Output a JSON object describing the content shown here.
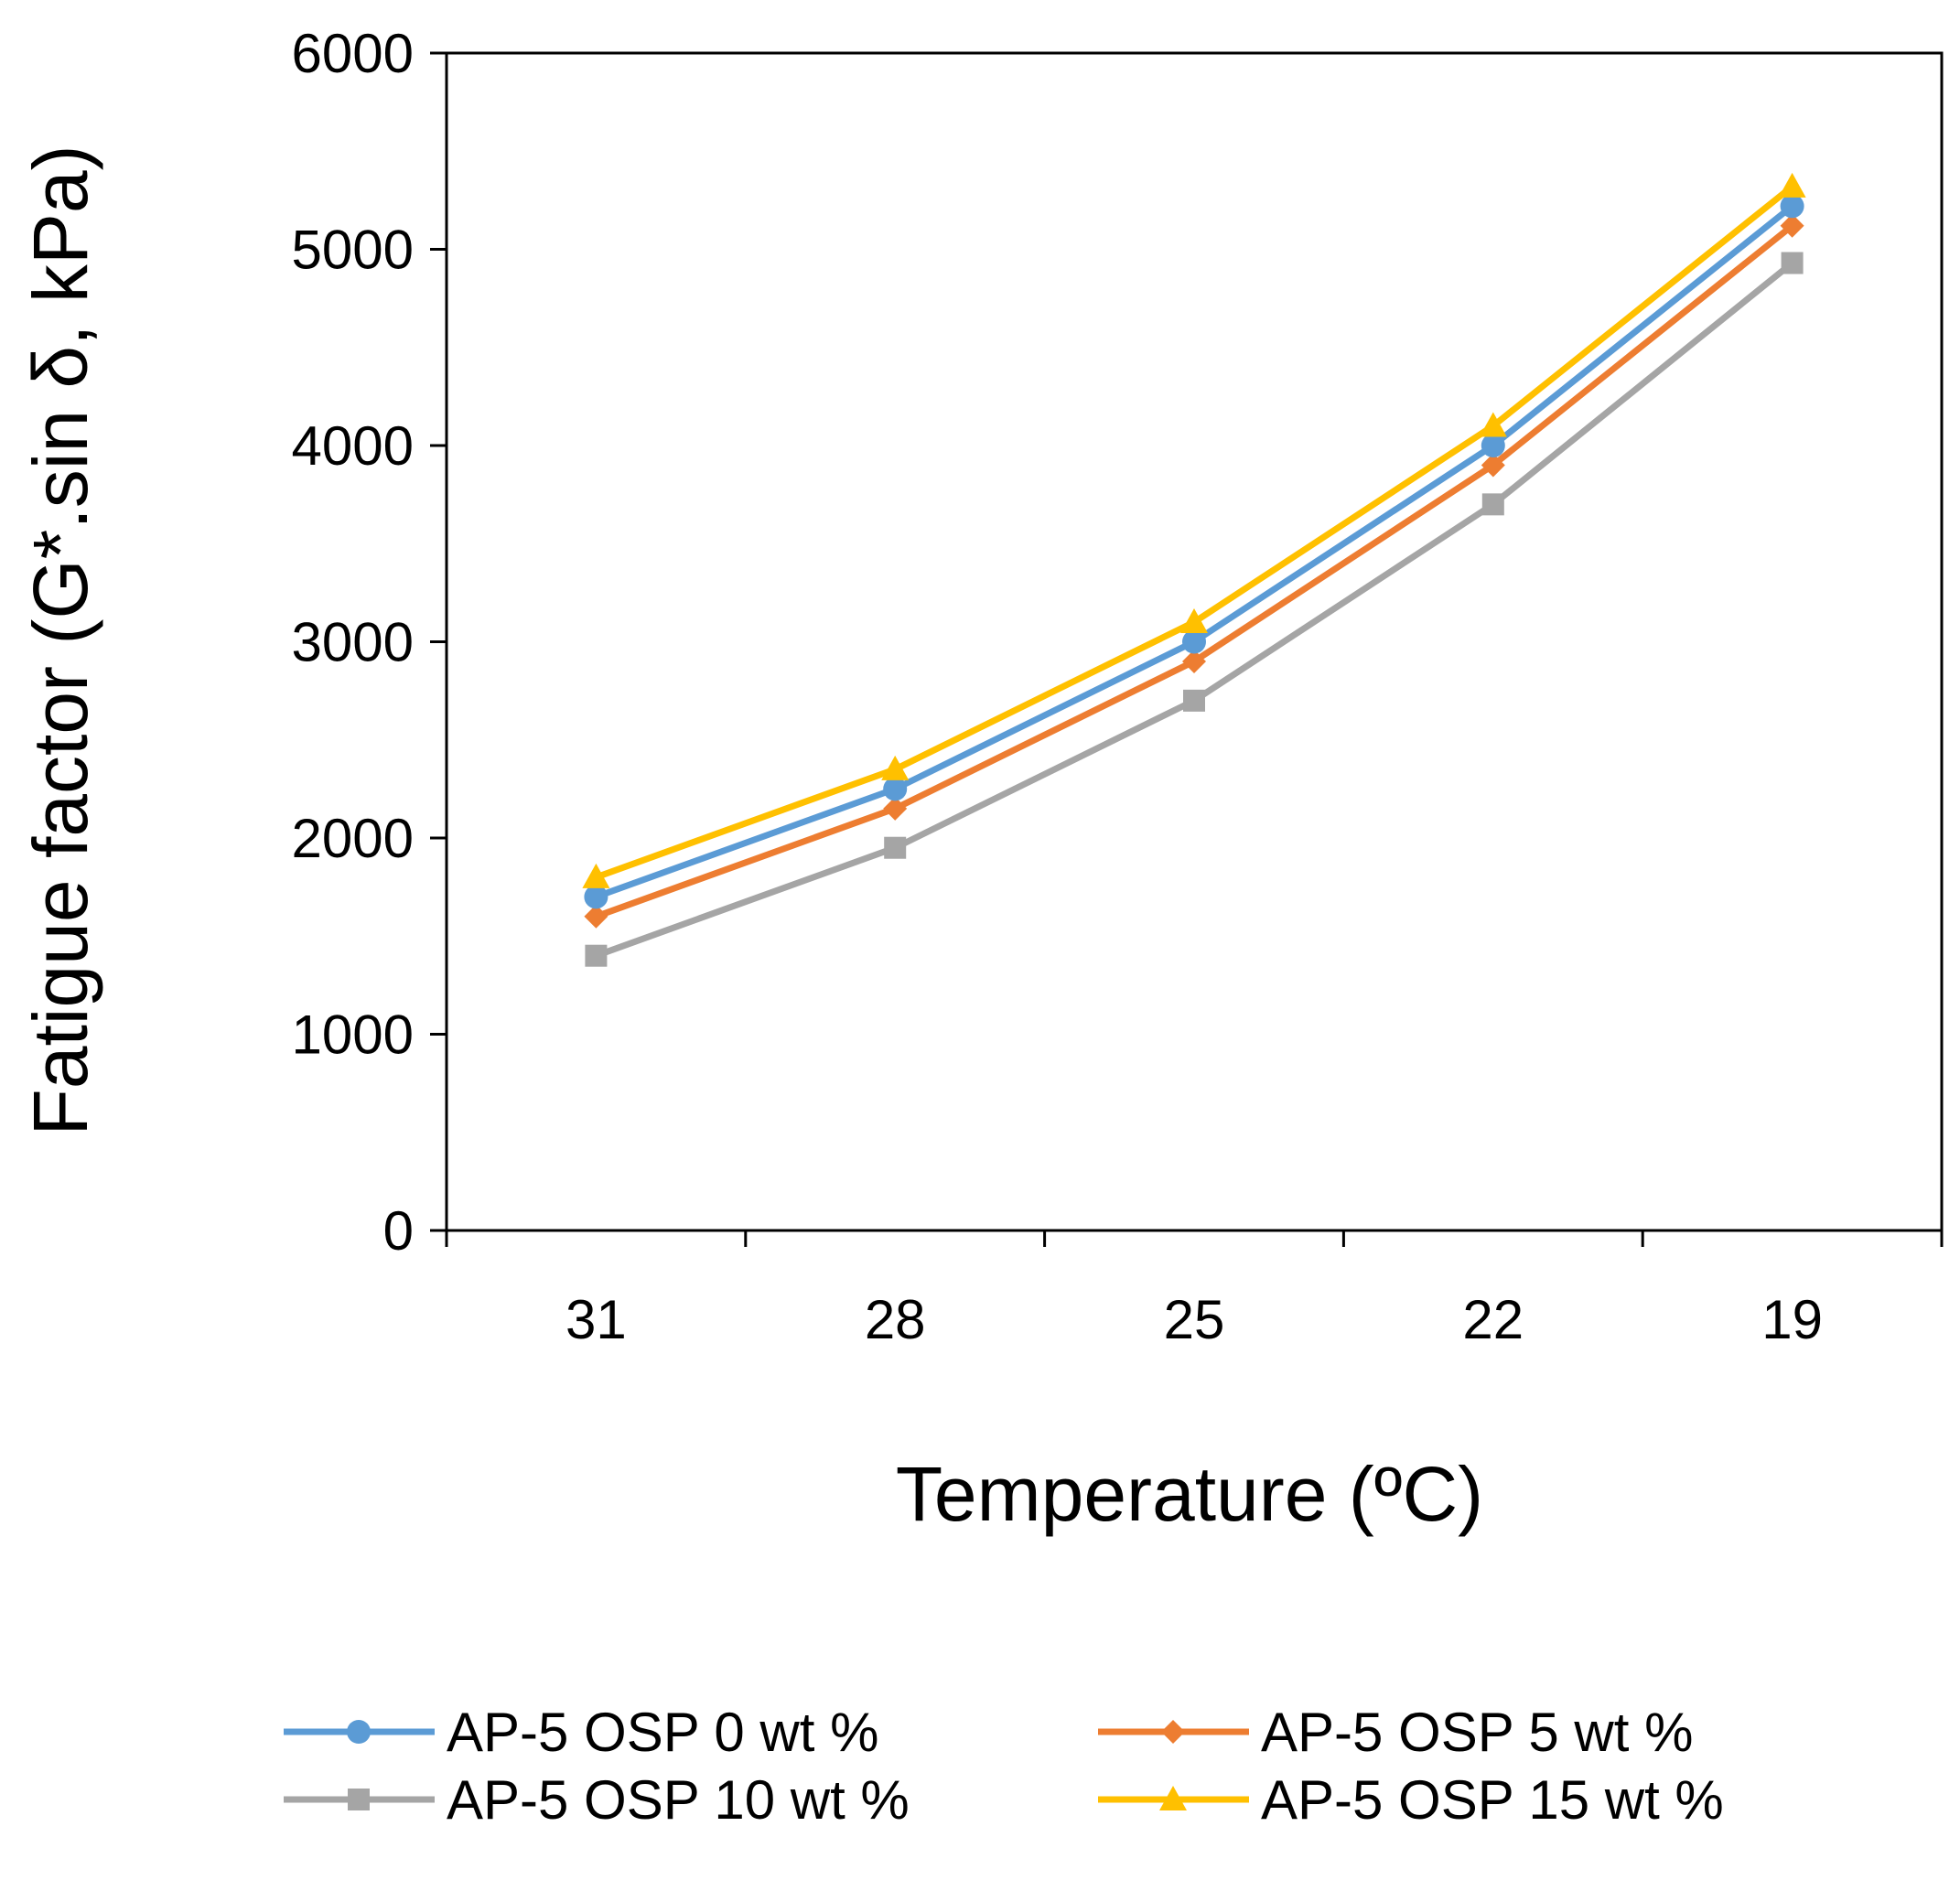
{
  "chart_data": {
    "type": "line",
    "title": "",
    "xlabel": "Temperature (ºC)",
    "ylabel": "Fatigue factor (G*.sin δ, kPa)",
    "categories": [
      "31",
      "28",
      "25",
      "22",
      "19"
    ],
    "ylim": [
      0,
      6000
    ],
    "yticks": [
      "0",
      "1000",
      "2000",
      "3000",
      "4000",
      "5000",
      "6000"
    ],
    "grid": false,
    "legend_position": "bottom",
    "series": [
      {
        "name": "AP-5 OSP 0 wt %",
        "color": "#5b9bd5",
        "marker": "circle",
        "values": [
          1700,
          2250,
          3000,
          4000,
          5220
        ]
      },
      {
        "name": "AP-5 OSP 5 wt %",
        "color": "#ed7d31",
        "marker": "diamond",
        "values": [
          1600,
          2150,
          2900,
          3900,
          5120
        ]
      },
      {
        "name": "AP-5 OSP 10 wt %",
        "color": "#a5a5a5",
        "marker": "square",
        "values": [
          1400,
          1950,
          2700,
          3700,
          4930
        ]
      },
      {
        "name": "AP-5 OSP 15 wt %",
        "color": "#ffc000",
        "marker": "triangle",
        "values": [
          1800,
          2350,
          3100,
          4100,
          5320
        ]
      }
    ]
  }
}
